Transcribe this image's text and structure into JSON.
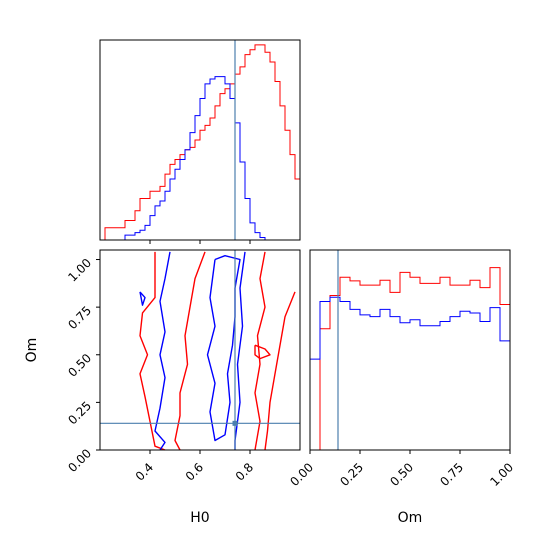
{
  "chart_data": [
    {
      "panel": "H0 marginal",
      "type": "histogram",
      "x": "H0",
      "xlim": [
        0.2,
        1.0
      ],
      "bins": [
        0.22,
        0.24,
        0.26,
        0.28,
        0.3,
        0.32,
        0.34,
        0.36,
        0.38,
        0.4,
        0.42,
        0.44,
        0.46,
        0.48,
        0.5,
        0.52,
        0.54,
        0.56,
        0.58,
        0.6,
        0.62,
        0.64,
        0.66,
        0.68,
        0.7,
        0.72,
        0.74,
        0.76,
        0.78,
        0.8,
        0.82,
        0.84,
        0.86,
        0.88,
        0.9,
        0.92,
        0.94,
        0.96,
        0.98,
        1.0
      ],
      "series": [
        {
          "color": "#ff0000",
          "counts": [
            5,
            5,
            5,
            5,
            8,
            8,
            12,
            17,
            17,
            20,
            20,
            22,
            27,
            31,
            33,
            35,
            37,
            38,
            41,
            45,
            47,
            50,
            55,
            60,
            62,
            64,
            68,
            71,
            76,
            78,
            80,
            80,
            77,
            73,
            65,
            55,
            45,
            35,
            25
          ]
        },
        {
          "color": "#0000ff",
          "counts": [
            0,
            0,
            0,
            0,
            2,
            2,
            3,
            4,
            6,
            10,
            14,
            16,
            20,
            25,
            29,
            33,
            37,
            44,
            51,
            58,
            64,
            66,
            67,
            67,
            64,
            58,
            48,
            32,
            17,
            7,
            3,
            1,
            0,
            0,
            0,
            0,
            0,
            0,
            0
          ]
        }
      ],
      "truth": 0.74
    },
    {
      "panel": "Om marginal",
      "type": "histogram",
      "x": "Om",
      "xlim": [
        0.0,
        1.0
      ],
      "xticks": [
        "0.00",
        "0.25",
        "0.50",
        "0.75",
        "1.00"
      ],
      "bins": [
        0.0,
        0.05,
        0.1,
        0.15,
        0.2,
        0.25,
        0.3,
        0.35,
        0.4,
        0.45,
        0.5,
        0.55,
        0.6,
        0.65,
        0.7,
        0.75,
        0.8,
        0.85,
        0.9,
        0.95,
        1.0
      ],
      "series": [
        {
          "color": "#ff0000",
          "counts": [
            0,
            2.0,
            2.55,
            2.85,
            2.79,
            2.72,
            2.72,
            2.8,
            2.6,
            2.93,
            2.85,
            2.75,
            2.75,
            2.85,
            2.72,
            2.72,
            2.8,
            2.68,
            3.01,
            2.4,
            0
          ]
        },
        {
          "color": "#0000ff",
          "counts": [
            1.5,
            2.45,
            2.52,
            2.45,
            2.32,
            2.23,
            2.2,
            2.32,
            2.2,
            2.1,
            2.15,
            2.05,
            2.05,
            2.12,
            2.2,
            2.29,
            2.26,
            2.12,
            2.35,
            1.8,
            1.8
          ]
        }
      ],
      "ylim": [
        0,
        3.3
      ],
      "truth": 0.14
    },
    {
      "panel": "H0 vs Om joint",
      "type": "contour",
      "x": "H0",
      "y": "Om",
      "xlim": [
        0.2,
        1.0
      ],
      "ylim": [
        0.0,
        1.05
      ],
      "xticks": [
        "0.4",
        "0.6",
        "0.8"
      ],
      "yticks": [
        "0.00",
        "0.25",
        "0.50",
        "0.75",
        "1.00"
      ],
      "xlabel": "H0",
      "ylabel": "Om",
      "series": [
        {
          "color": "#ff0000",
          "contours": [
            [
              [
                0.42,
                1.04
              ],
              [
                0.42,
                0.8
              ],
              [
                0.37,
                0.72
              ],
              [
                0.36,
                0.6
              ],
              [
                0.39,
                0.5
              ],
              [
                0.36,
                0.4
              ],
              [
                0.38,
                0.28
              ],
              [
                0.4,
                0.15
              ],
              [
                0.42,
                0.02
              ],
              [
                0.46,
                0.0
              ]
            ],
            [
              [
                0.62,
                1.04
              ],
              [
                0.58,
                0.9
              ],
              [
                0.56,
                0.75
              ],
              [
                0.54,
                0.6
              ],
              [
                0.55,
                0.45
              ],
              [
                0.52,
                0.3
              ],
              [
                0.52,
                0.18
              ],
              [
                0.5,
                0.05
              ],
              [
                0.52,
                0.0
              ]
            ],
            [
              [
                0.86,
                1.04
              ],
              [
                0.84,
                0.9
              ],
              [
                0.86,
                0.75
              ],
              [
                0.83,
                0.6
              ],
              [
                0.84,
                0.45
              ],
              [
                0.82,
                0.3
              ],
              [
                0.84,
                0.15
              ],
              [
                0.82,
                0.0
              ]
            ],
            [
              [
                0.98,
                0.83
              ],
              [
                0.94,
                0.7
              ],
              [
                0.92,
                0.55
              ],
              [
                0.9,
                0.4
              ],
              [
                0.88,
                0.25
              ],
              [
                0.87,
                0.1
              ],
              [
                0.86,
                0.0
              ]
            ],
            [
              [
                0.82,
                0.55
              ],
              [
                0.86,
                0.53
              ],
              [
                0.88,
                0.5
              ],
              [
                0.84,
                0.48
              ],
              [
                0.82,
                0.5
              ],
              [
                0.82,
                0.55
              ]
            ]
          ]
        },
        {
          "color": "#0000ff",
          "contours": [
            [
              [
                0.48,
                1.04
              ],
              [
                0.46,
                0.9
              ],
              [
                0.44,
                0.78
              ],
              [
                0.46,
                0.62
              ],
              [
                0.44,
                0.5
              ],
              [
                0.46,
                0.38
              ],
              [
                0.44,
                0.22
              ],
              [
                0.42,
                0.1
              ],
              [
                0.46,
                0.04
              ],
              [
                0.44,
                0.0
              ]
            ],
            [
              [
                0.66,
                1.0
              ],
              [
                0.7,
                1.02
              ],
              [
                0.76,
                1.0
              ],
              [
                0.74,
                0.85
              ],
              [
                0.74,
                0.7
              ],
              [
                0.73,
                0.55
              ],
              [
                0.71,
                0.4
              ],
              [
                0.72,
                0.25
              ],
              [
                0.7,
                0.08
              ],
              [
                0.66,
                0.05
              ],
              [
                0.64,
                0.2
              ],
              [
                0.66,
                0.35
              ],
              [
                0.63,
                0.5
              ],
              [
                0.66,
                0.65
              ],
              [
                0.64,
                0.8
              ],
              [
                0.66,
                1.0
              ]
            ],
            [
              [
                0.78,
                1.04
              ],
              [
                0.76,
                0.85
              ],
              [
                0.77,
                0.65
              ],
              [
                0.75,
                0.45
              ],
              [
                0.76,
                0.25
              ],
              [
                0.74,
                0.05
              ],
              [
                0.74,
                0.0
              ]
            ],
            [
              [
                0.36,
                0.83
              ],
              [
                0.38,
                0.8
              ],
              [
                0.37,
                0.76
              ],
              [
                0.36,
                0.83
              ]
            ]
          ]
        }
      ],
      "truth": {
        "H0": 0.74,
        "Om": 0.14
      }
    }
  ]
}
